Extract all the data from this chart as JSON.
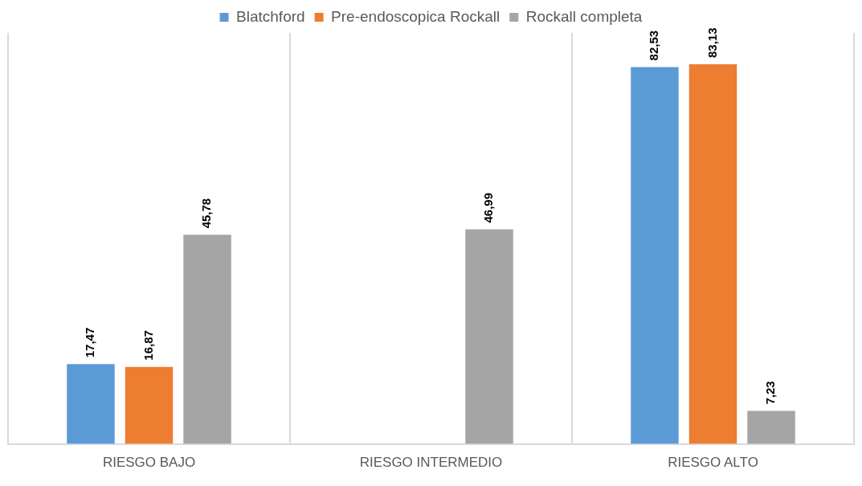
{
  "chart_data": {
    "type": "bar",
    "categories": [
      "RIESGO BAJO",
      "RIESGO INTERMEDIO",
      "RIESGO ALTO"
    ],
    "series": [
      {
        "name": "Blatchford",
        "color": "#5b9bd5",
        "values": [
          17.47,
          null,
          82.53
        ],
        "value_labels": [
          "17,47",
          null,
          "82,53"
        ]
      },
      {
        "name": "Pre-endoscopica Rockall",
        "color": "#ed7d31",
        "values": [
          16.87,
          null,
          83.13
        ],
        "value_labels": [
          "16,87",
          null,
          "83,13"
        ]
      },
      {
        "name": "Rockall completa",
        "color": "#a5a5a5",
        "values": [
          45.78,
          46.99,
          7.23
        ],
        "value_labels": [
          "45,78",
          "46,99",
          "7,23"
        ]
      }
    ],
    "grid": "x",
    "legend": "top",
    "tick_labels": "x"
  }
}
